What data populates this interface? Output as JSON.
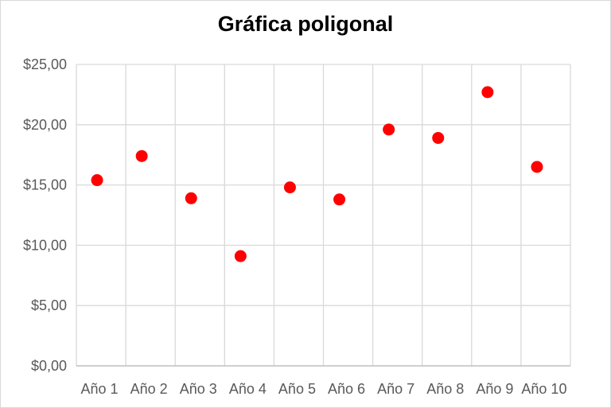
{
  "chart_data": {
    "type": "scatter",
    "title": "Gráfica poligonal",
    "xlabel": "",
    "ylabel": "",
    "categories": [
      "Año 1",
      "Año 2",
      "Año 3",
      "Año 4",
      "Año 5",
      "Año 6",
      "Año 7",
      "Año 8",
      "Año 9",
      "Año 10"
    ],
    "values": [
      15.4,
      17.4,
      13.9,
      9.1,
      14.8,
      13.8,
      19.6,
      18.9,
      22.7,
      16.5
    ],
    "ylim": [
      0,
      25
    ],
    "yticks": [
      0,
      5,
      10,
      15,
      20,
      25
    ],
    "ytick_labels": [
      "$0,00",
      "$5,00",
      "$10,00",
      "$15,00",
      "$20,00",
      "$25,00"
    ],
    "grid": true,
    "legend": "none",
    "colors": {
      "marker": "#ff0000",
      "grid": "#d9d9d9",
      "axis": "#bfbfbf",
      "text": "#595959"
    }
  }
}
